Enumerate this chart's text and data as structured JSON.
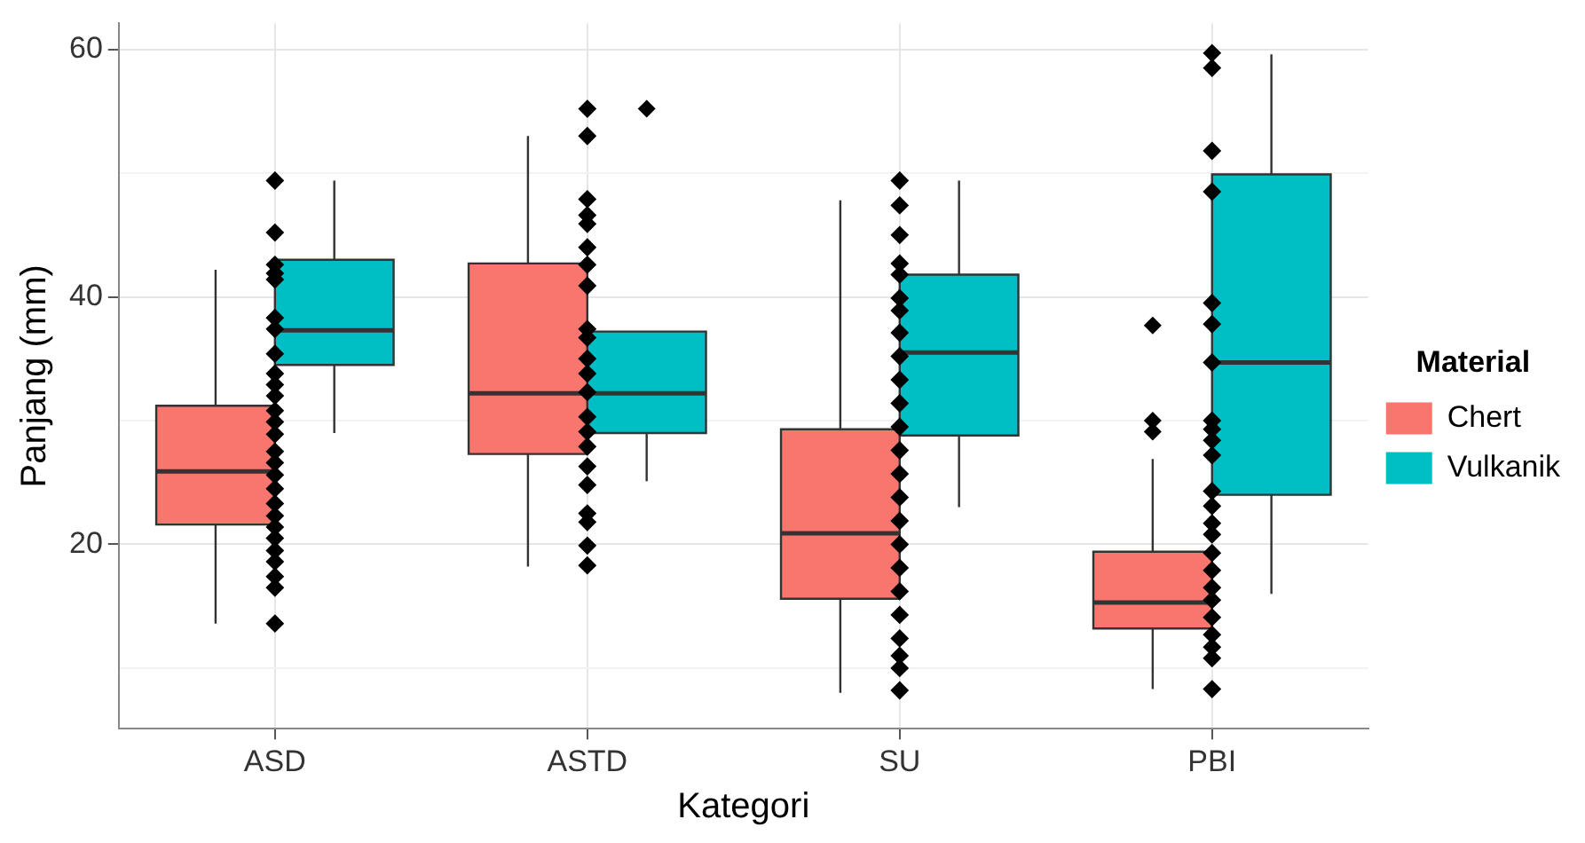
{
  "chart_data": {
    "type": "box",
    "xlabel": "Kategori",
    "ylabel": "Panjang (mm)",
    "legend_title": "Material",
    "legend": "right",
    "grid": true,
    "marker": "diamond",
    "categories": [
      "ASD",
      "ASTD",
      "SU",
      "PBI"
    ],
    "ylim": [
      5.1,
      62.1
    ],
    "yticks": [
      {
        "value": 10,
        "label": null
      },
      20,
      {
        "value": 30,
        "label": null
      },
      40,
      {
        "value": 50,
        "label": null
      },
      60
    ],
    "series": [
      {
        "name": "Chert",
        "color": "#f8766d",
        "boxes": [
          {
            "low": 13.6,
            "q1": 21.6,
            "median": 25.9,
            "q3": 31.2,
            "high": 42.2
          },
          {
            "low": 18.2,
            "q1": 27.3,
            "median": 32.2,
            "q3": 42.7,
            "high": 53.0
          },
          {
            "low": 8.0,
            "q1": 15.6,
            "median": 20.9,
            "q3": 29.3,
            "high": 47.8
          },
          {
            "low": 8.3,
            "q1": 13.2,
            "median": 15.3,
            "q3": 19.4,
            "high": 26.9,
            "outliers": [
              37.7,
              30.0,
              29.1
            ]
          }
        ]
      },
      {
        "name": "Vulkanik",
        "color": "#00bfc4",
        "boxes": [
          {
            "low": 29.0,
            "q1": 34.5,
            "median": 37.3,
            "q3": 43.0,
            "high": 49.4
          },
          {
            "low": 25.1,
            "q1": 29.0,
            "median": 32.2,
            "q3": 37.2,
            "high": 37.2,
            "outliers": [
              55.2
            ]
          },
          {
            "low": 23.0,
            "q1": 28.8,
            "median": 35.5,
            "q3": 41.8,
            "high": 49.4
          },
          {
            "low": 16.0,
            "q1": 24.0,
            "median": 34.7,
            "q3": 49.9,
            "high": 59.6
          }
        ]
      },
      {
        "type": "scatter",
        "color": "#000000",
        "x": [
          "ASD",
          "ASD",
          "ASD",
          "ASD",
          "ASD",
          "ASD",
          "ASD",
          "ASD",
          "ASD",
          "ASD",
          "ASD",
          "ASD",
          "ASD",
          "ASD",
          "ASD",
          "ASD",
          "ASD",
          "ASD",
          "ASD",
          "ASD",
          "ASD",
          "ASD",
          "ASD",
          "ASD",
          "ASD",
          "ASD",
          "ASD",
          "ASTD",
          "ASTD",
          "ASTD",
          "ASTD",
          "ASTD",
          "ASTD",
          "ASTD",
          "ASTD",
          "ASTD",
          "ASTD",
          "ASTD",
          "ASTD",
          "ASTD",
          "ASTD",
          "ASTD",
          "ASTD",
          "ASTD",
          "ASTD",
          "ASTD",
          "ASTD",
          "ASTD",
          "ASTD",
          "SU",
          "SU",
          "SU",
          "SU",
          "SU",
          "SU",
          "SU",
          "SU",
          "SU",
          "SU",
          "SU",
          "SU",
          "SU",
          "SU",
          "SU",
          "SU",
          "SU",
          "SU",
          "SU",
          "SU",
          "SU",
          "SU",
          "SU",
          "SU",
          "PBI",
          "PBI",
          "PBI",
          "PBI",
          "PBI",
          "PBI",
          "PBI",
          "PBI",
          "PBI",
          "PBI",
          "PBI",
          "PBI",
          "PBI",
          "PBI",
          "PBI",
          "PBI",
          "PBI",
          "PBI",
          "PBI",
          "PBI",
          "PBI",
          "PBI",
          "PBI",
          "PBI"
        ],
        "values": [
          49.4,
          45.2,
          42.6,
          41.9,
          41.4,
          38.3,
          37.4,
          35.4,
          33.8,
          32.9,
          32.0,
          30.8,
          29.9,
          28.9,
          27.5,
          26.6,
          25.6,
          24.5,
          23.3,
          22.3,
          21.4,
          20.5,
          19.5,
          18.6,
          17.4,
          16.5,
          13.6,
          55.2,
          53.0,
          47.9,
          46.6,
          45.9,
          44.0,
          42.6,
          40.9,
          37.4,
          36.7,
          35.0,
          33.8,
          32.3,
          30.3,
          29.1,
          27.9,
          26.3,
          24.8,
          22.5,
          21.8,
          19.9,
          18.3,
          49.4,
          47.4,
          45.0,
          42.7,
          41.8,
          39.9,
          38.9,
          37.1,
          35.2,
          33.3,
          31.4,
          29.5,
          27.6,
          25.7,
          23.8,
          21.9,
          20.0,
          18.1,
          16.2,
          14.3,
          12.4,
          11.0,
          10.0,
          8.2,
          59.7,
          58.5,
          51.8,
          48.5,
          39.5,
          37.8,
          34.7,
          30.0,
          29.3,
          28.4,
          27.2,
          24.3,
          23.1,
          21.7,
          20.8,
          19.3,
          17.9,
          16.5,
          15.5,
          14.1,
          12.7,
          11.7,
          10.8,
          8.3
        ]
      }
    ]
  }
}
